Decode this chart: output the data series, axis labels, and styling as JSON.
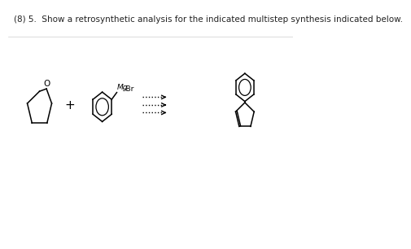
{
  "title": "(8) 5.  Show a retrosynthetic analysis for the indicated multistep synthesis indicated below.",
  "bg_color": "#ffffff",
  "text_color": "#222222",
  "title_fontsize": 7.5,
  "mol_y": 3.5,
  "xlim": [
    0,
    10
  ],
  "ylim": [
    0,
    6
  ]
}
